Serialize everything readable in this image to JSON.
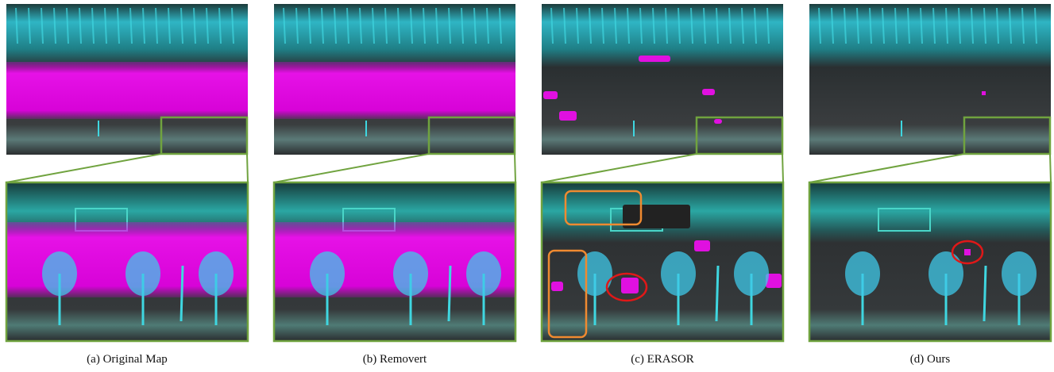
{
  "captions": [
    "(a) Original Map",
    "(b) Removert",
    "(c) ERASOR",
    "(d) Ours"
  ]
}
